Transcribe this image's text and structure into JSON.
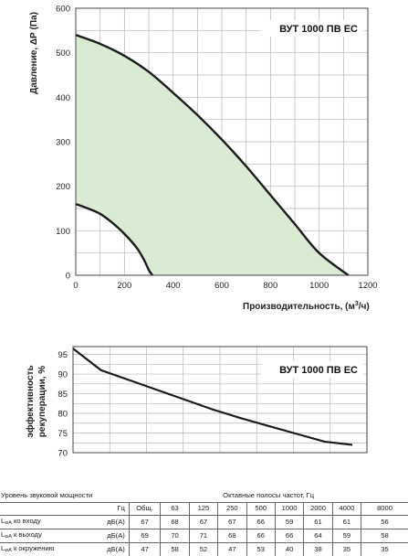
{
  "chart_data": [
    {
      "type": "line",
      "title": "ВУТ 1000 ПВ ЕС",
      "xlabel": "Производительность, (м³/ч)",
      "ylabel": "Давление, ΔР (Па)",
      "xlim": [
        0,
        1200
      ],
      "ylim": [
        0,
        600
      ],
      "x_ticks": [
        "0",
        "200",
        "400",
        "600",
        "800",
        "1000",
        "1200"
      ],
      "y_ticks": [
        "0",
        "100",
        "200",
        "300",
        "400",
        "500",
        "600"
      ],
      "grid": true,
      "fill_color": "#d9ecd3",
      "series": [
        {
          "role": "upper",
          "x": [
            0,
            100,
            200,
            300,
            400,
            500,
            600,
            700,
            800,
            900,
            1000,
            1120
          ],
          "y": [
            540,
            520,
            493,
            457,
            410,
            360,
            305,
            245,
            180,
            115,
            50,
            0
          ]
        },
        {
          "role": "lower",
          "x": [
            0,
            50,
            100,
            150,
            200,
            250,
            280,
            300,
            315
          ],
          "y": [
            160,
            150,
            138,
            118,
            93,
            62,
            35,
            12,
            0
          ]
        }
      ]
    },
    {
      "type": "line",
      "title": "ВУТ 1000 ПВ ЕС",
      "xlabel": "",
      "ylabel": "эффективность рекуперации, %",
      "ylim": [
        70,
        97
      ],
      "y_ticks": [
        "70",
        "75",
        "80",
        "85",
        "90",
        "95"
      ],
      "grid": true,
      "series": [
        {
          "x": [
            0,
            0.1,
            0.2,
            0.3,
            0.4,
            0.5,
            0.6,
            0.7,
            0.8,
            0.9,
            1.0
          ],
          "y": [
            96.5,
            91,
            88.5,
            86,
            83.5,
            81,
            78.8,
            76.8,
            74.8,
            72.8,
            72
          ]
        }
      ]
    }
  ],
  "noise_table": {
    "title": "Уровень звуковой мощности",
    "bands_title": "Октавные полосы частот, Гц",
    "unit_header": "Гц",
    "columns": [
      "Общ.",
      "63",
      "125",
      "250",
      "500",
      "1000",
      "2000",
      "4000",
      "8000"
    ],
    "rows": [
      {
        "label_main": "L",
        "label_sub": "wA",
        "label_rest": " ко входу",
        "unit": "дБ(А)",
        "values": [
          "67",
          "68",
          "67",
          "67",
          "66",
          "59",
          "61",
          "61",
          "56"
        ]
      },
      {
        "label_main": "L",
        "label_sub": "wA",
        "label_rest": " к выходу",
        "unit": "дБ(А)",
        "values": [
          "69",
          "70",
          "71",
          "68",
          "66",
          "66",
          "64",
          "59",
          "58"
        ]
      },
      {
        "label_main": "L",
        "label_sub": "wA",
        "label_rest": " к окружению",
        "unit": "дБ(А)",
        "values": [
          "47",
          "58",
          "52",
          "47",
          "53",
          "40",
          "38",
          "35",
          "35"
        ]
      }
    ]
  }
}
